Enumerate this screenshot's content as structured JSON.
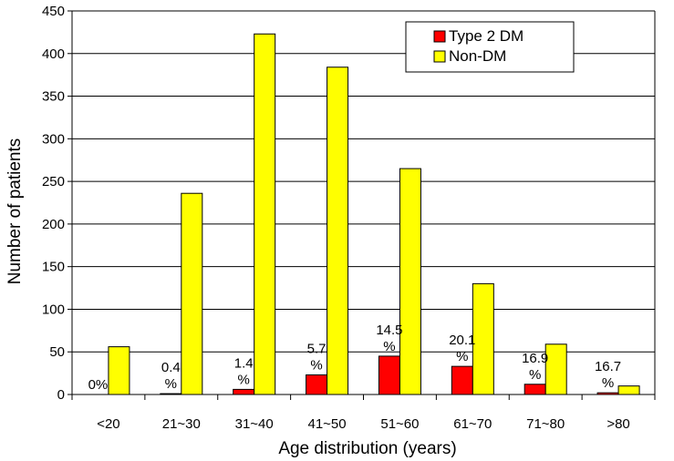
{
  "chart_data": {
    "type": "bar",
    "xlabel": "Age distribution (years)",
    "ylabel": "Number of patients",
    "ylim": [
      0,
      450
    ],
    "yticks": [
      "0",
      "50",
      "100",
      "150",
      "200",
      "250",
      "300",
      "350",
      "400",
      "450"
    ],
    "grid": "horizontal",
    "legend_position": "top-right",
    "categories": [
      "<20",
      "21~30",
      "31~40",
      "41~50",
      "51~60",
      "61~70",
      "71~80",
      ">80"
    ],
    "series": [
      {
        "name": "Type 2 DM",
        "color": "#ff0000",
        "values": [
          0,
          1,
          6,
          23,
          45,
          33,
          12,
          2
        ]
      },
      {
        "name": "Non-DM",
        "color": "#ffff00",
        "values": [
          56,
          236,
          423,
          384,
          265,
          130,
          59,
          10
        ]
      }
    ],
    "annotations": [
      [
        "0%"
      ],
      [
        "0.4",
        "%"
      ],
      [
        "1.4",
        "%"
      ],
      [
        "5.7",
        "%"
      ],
      [
        "14.5",
        "%"
      ],
      [
        "20.1",
        "%"
      ],
      [
        "16.9",
        "%"
      ],
      [
        "16.7",
        "%"
      ]
    ]
  }
}
